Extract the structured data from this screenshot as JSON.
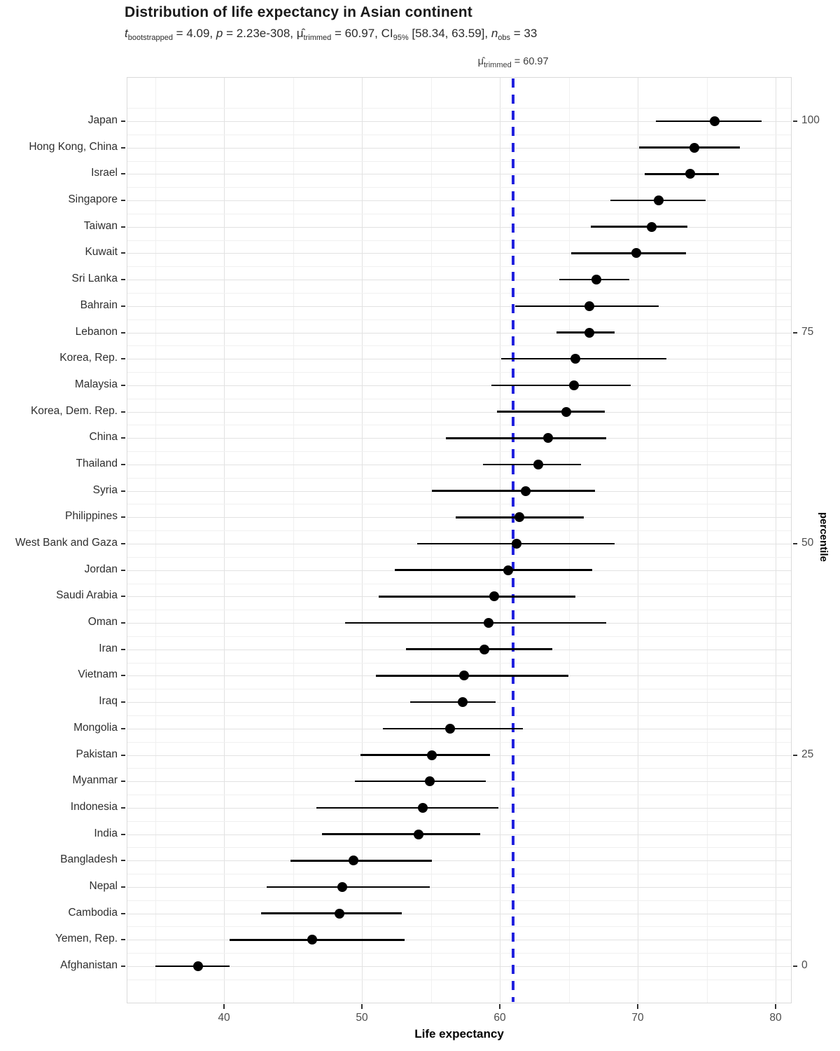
{
  "chart_data": {
    "type": "scatter",
    "subtype": "pointrange-dotplot",
    "title": "Distribution of life expectancy in Asian continent",
    "subtitle_plain": "t bootstrapped = 4.09, p = 2.23e-308, μ̂ trimmed = 60.97, CI 95% [58.34, 63.59], n obs = 33",
    "subtitle_segments": [
      {
        "text": "t",
        "style": "italic"
      },
      {
        "text": "bootstrapped",
        "style": "sub"
      },
      {
        "text": " = 4.09, ",
        "style": "normal"
      },
      {
        "text": "p",
        "style": "italic"
      },
      {
        "text": " = 2.23e-308, ",
        "style": "normal"
      },
      {
        "text": "μ̂",
        "style": "normal"
      },
      {
        "text": "trimmed",
        "style": "sub"
      },
      {
        "text": " = 60.97, CI",
        "style": "normal"
      },
      {
        "text": "95%",
        "style": "sub"
      },
      {
        "text": " [58.34, 63.59], ",
        "style": "normal"
      },
      {
        "text": "n",
        "style": "italic"
      },
      {
        "text": "obs",
        "style": "sub"
      },
      {
        "text": " = 33",
        "style": "normal"
      }
    ],
    "xlabel": "Life expectancy",
    "right_axis_label": "percentile",
    "x_ticks": [
      40,
      50,
      60,
      70,
      80
    ],
    "x_minor_ticks": [
      35,
      45,
      55,
      65,
      75
    ],
    "xlim": [
      32.9,
      81.2
    ],
    "right_ticks": [
      100,
      75,
      50,
      25,
      0
    ],
    "grid": true,
    "legend": "none",
    "point_color": "#000000",
    "ref_line": {
      "value": 60.97,
      "color": "#2121de",
      "label_plain": "μ̂ trimmed = 60.97",
      "label_segments": [
        {
          "text": "μ̂",
          "style": "normal"
        },
        {
          "text": "trimmed",
          "style": "sub"
        },
        {
          "text": " = 60.97",
          "style": "normal"
        }
      ]
    },
    "series": [
      {
        "name": "Japan",
        "mean": 75.6,
        "ci_low": 71.3,
        "ci_high": 79.0
      },
      {
        "name": "Hong Kong, China",
        "mean": 74.1,
        "ci_low": 70.1,
        "ci_high": 77.4
      },
      {
        "name": "Israel",
        "mean": 73.8,
        "ci_low": 70.5,
        "ci_high": 75.9
      },
      {
        "name": "Singapore",
        "mean": 71.5,
        "ci_low": 68.0,
        "ci_high": 74.9
      },
      {
        "name": "Taiwan",
        "mean": 71.0,
        "ci_low": 66.6,
        "ci_high": 73.6
      },
      {
        "name": "Kuwait",
        "mean": 69.9,
        "ci_low": 65.2,
        "ci_high": 73.5
      },
      {
        "name": "Sri Lanka",
        "mean": 67.0,
        "ci_low": 64.3,
        "ci_high": 69.4
      },
      {
        "name": "Bahrain",
        "mean": 66.5,
        "ci_low": 61.1,
        "ci_high": 71.5
      },
      {
        "name": "Lebanon",
        "mean": 66.5,
        "ci_low": 64.1,
        "ci_high": 68.3
      },
      {
        "name": "Korea, Rep.",
        "mean": 65.5,
        "ci_low": 60.1,
        "ci_high": 72.1
      },
      {
        "name": "Malaysia",
        "mean": 65.4,
        "ci_low": 59.4,
        "ci_high": 69.5
      },
      {
        "name": "Korea, Dem. Rep.",
        "mean": 64.8,
        "ci_low": 59.8,
        "ci_high": 67.6
      },
      {
        "name": "China",
        "mean": 63.5,
        "ci_low": 56.1,
        "ci_high": 67.7
      },
      {
        "name": "Thailand",
        "mean": 62.8,
        "ci_low": 58.8,
        "ci_high": 65.9
      },
      {
        "name": "Syria",
        "mean": 61.9,
        "ci_low": 55.1,
        "ci_high": 66.9
      },
      {
        "name": "Philippines",
        "mean": 61.4,
        "ci_low": 56.8,
        "ci_high": 66.1
      },
      {
        "name": "West Bank and Gaza",
        "mean": 61.2,
        "ci_low": 54.0,
        "ci_high": 68.3
      },
      {
        "name": "Jordan",
        "mean": 60.6,
        "ci_low": 52.4,
        "ci_high": 66.7
      },
      {
        "name": "Saudi Arabia",
        "mean": 59.6,
        "ci_low": 51.2,
        "ci_high": 65.5
      },
      {
        "name": "Oman",
        "mean": 59.2,
        "ci_low": 48.8,
        "ci_high": 67.7
      },
      {
        "name": "Iran",
        "mean": 58.9,
        "ci_low": 53.2,
        "ci_high": 63.8
      },
      {
        "name": "Vietnam",
        "mean": 57.4,
        "ci_low": 51.0,
        "ci_high": 65.0
      },
      {
        "name": "Iraq",
        "mean": 57.3,
        "ci_low": 53.5,
        "ci_high": 59.7
      },
      {
        "name": "Mongolia",
        "mean": 56.4,
        "ci_low": 51.5,
        "ci_high": 61.7
      },
      {
        "name": "Pakistan",
        "mean": 55.1,
        "ci_low": 49.9,
        "ci_high": 59.3
      },
      {
        "name": "Myanmar",
        "mean": 54.9,
        "ci_low": 49.5,
        "ci_high": 59.0
      },
      {
        "name": "Indonesia",
        "mean": 54.4,
        "ci_low": 46.7,
        "ci_high": 59.9
      },
      {
        "name": "India",
        "mean": 54.1,
        "ci_low": 47.1,
        "ci_high": 58.6
      },
      {
        "name": "Bangladesh",
        "mean": 49.4,
        "ci_low": 44.8,
        "ci_high": 55.1
      },
      {
        "name": "Nepal",
        "mean": 48.6,
        "ci_low": 43.1,
        "ci_high": 54.9
      },
      {
        "name": "Cambodia",
        "mean": 48.4,
        "ci_low": 42.7,
        "ci_high": 52.9
      },
      {
        "name": "Yemen, Rep.",
        "mean": 46.4,
        "ci_low": 40.4,
        "ci_high": 53.1
      },
      {
        "name": "Afghanistan",
        "mean": 38.1,
        "ci_low": 35.0,
        "ci_high": 40.4
      }
    ]
  }
}
